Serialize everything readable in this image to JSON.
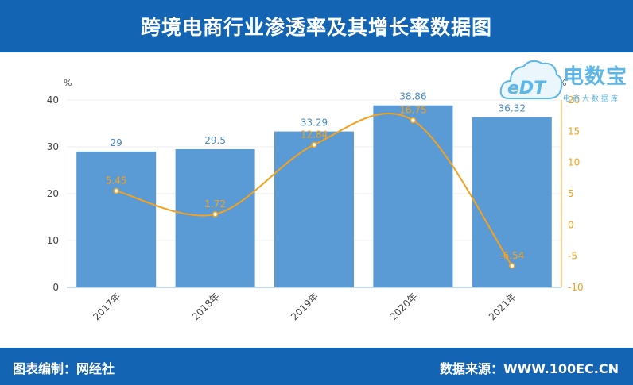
{
  "header": {
    "title": "跨境电商行业渗透率及其增长率数据图"
  },
  "footer": {
    "left": "图表编制：网经社",
    "right": "数据来源：WWW.100EC.CN"
  },
  "logo": {
    "brand": "电数宝",
    "sub": "电商大数据库",
    "mark": "eDT"
  },
  "chart_data": {
    "type": "bar",
    "title": "跨境电商行业渗透率及其增长率数据图",
    "categories": [
      "2017年",
      "2018年",
      "2019年",
      "2020年",
      "2021年"
    ],
    "y_left": {
      "label": "%",
      "lim": [
        0,
        40
      ],
      "ticks": [
        0,
        10,
        20,
        30,
        40
      ]
    },
    "y_right": {
      "label": "%",
      "lim": [
        -10,
        20
      ],
      "ticks": [
        -10,
        -5,
        0,
        5,
        10,
        15,
        20
      ]
    },
    "series": [
      {
        "type": "bar",
        "axis": "left",
        "color": "#5b9bd5",
        "values": [
          29,
          29.5,
          33.29,
          38.86,
          36.32
        ],
        "labels": [
          "29",
          "29.5",
          "33.29",
          "38.86",
          "36.32"
        ]
      },
      {
        "type": "line",
        "axis": "right",
        "color": "#f5a11c",
        "values": [
          5.45,
          1.72,
          12.84,
          16.75,
          -6.54
        ],
        "labels": [
          "5.45",
          "1.72",
          "12.84",
          "16.75",
          "-6.54"
        ]
      }
    ],
    "colors": {
      "bar": "#5b9bd5",
      "line": "#f5a11c",
      "bar_label": "#4a8ccc",
      "axis_right": "#f5a11c"
    },
    "grid": true,
    "legend": "none"
  }
}
